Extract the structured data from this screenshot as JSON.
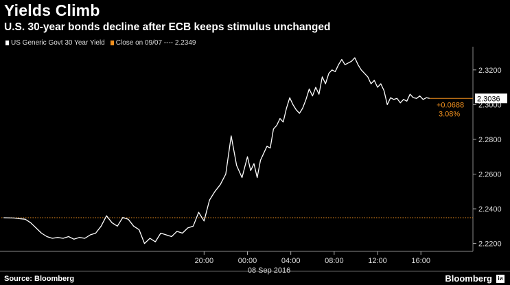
{
  "title": "Yields Climb",
  "subtitle": "U.S. 30-year bonds decline after ECB keeps stimulus unchanged",
  "legend": {
    "series_label": "US Generic Govt 30 Year Yield",
    "close_label": "Close on 09/07 ---- 2.2349"
  },
  "source": "Source: Bloomberg",
  "brand": "Bloomberg",
  "brand_mark": "іи",
  "colors": {
    "background": "#000000",
    "line": "#ffffff",
    "reference": "#f0901e"
  },
  "chart_data": {
    "type": "line",
    "x_ticks": [
      "20:00",
      "00:00",
      "04:00",
      "08:00",
      "12:00",
      "16:00"
    ],
    "x_date_label": "08 Sep 2016",
    "y_ticks": [
      "2.2200",
      "2.2400",
      "2.2600",
      "2.2800",
      "2.3000",
      "2.3200"
    ],
    "ylim": [
      2.2155,
      2.331
    ],
    "reference_value": 2.2349,
    "last_value_label": "2.3036",
    "change_label": "+0.0688",
    "change_pct_label": "3.08%",
    "series": [
      {
        "x": [
          -22.5,
          -21.5,
          -21,
          -20.5,
          -20,
          -19.5,
          -19,
          -18.5,
          -18,
          -17.5,
          -17,
          -16.5,
          -16,
          -15.5,
          -15,
          -14.5,
          -14,
          -13.5,
          -13,
          -12.5,
          -12,
          -11.5,
          -11,
          -10.5,
          -10,
          -9.5,
          -9,
          -8.5,
          -8,
          -7.5,
          -7,
          -6.5,
          -6,
          -5.5,
          -5,
          -4.5,
          -4,
          -3.5,
          -3,
          -2.5,
          -2,
          -1.5,
          -1,
          -0.5,
          0,
          0.3,
          0.6,
          0.9,
          1.2,
          1.5,
          1.8,
          2.1,
          2.4,
          2.7,
          3.0,
          3.3,
          3.6,
          3.9,
          4.2,
          4.5,
          4.8,
          5.1,
          5.4,
          5.7,
          6.0,
          6.3,
          6.6,
          6.9,
          7.2,
          7.5,
          7.8,
          8.1,
          8.4,
          8.7,
          9.0,
          9.3,
          9.6,
          9.9,
          10.2,
          10.5,
          10.8,
          11.1,
          11.4,
          11.7,
          12.0,
          12.3,
          12.6,
          12.9,
          13.2,
          13.5,
          13.8,
          14.1,
          14.4,
          14.7,
          15.0,
          15.3,
          15.6,
          15.9,
          16.2,
          16.5,
          16.8
        ],
        "y": [
          2.2349,
          2.2347,
          2.2343,
          2.234,
          2.232,
          2.229,
          2.226,
          2.224,
          2.223,
          2.2235,
          2.223,
          2.224,
          2.2225,
          2.2235,
          2.223,
          2.225,
          2.226,
          2.23,
          2.236,
          2.232,
          2.23,
          2.235,
          2.234,
          2.23,
          2.228,
          2.22,
          2.223,
          2.221,
          2.226,
          2.225,
          2.224,
          2.227,
          2.226,
          2.229,
          2.23,
          2.238,
          2.233,
          2.245,
          2.25,
          2.254,
          2.26,
          2.282,
          2.265,
          2.258,
          2.27,
          2.262,
          2.266,
          2.258,
          2.268,
          2.272,
          2.276,
          2.275,
          2.286,
          2.288,
          2.292,
          2.29,
          2.298,
          2.304,
          2.3,
          2.297,
          2.295,
          2.298,
          2.303,
          2.309,
          2.305,
          2.31,
          2.306,
          2.316,
          2.312,
          2.318,
          2.32,
          2.319,
          2.323,
          2.326,
          2.323,
          2.324,
          2.325,
          2.327,
          2.323,
          2.32,
          2.318,
          2.316,
          2.312,
          2.314,
          2.31,
          2.312,
          2.308,
          2.3,
          2.304,
          2.303,
          2.3036,
          2.301,
          2.303,
          2.302,
          2.306,
          2.304,
          2.3036,
          2.305,
          2.303,
          2.304,
          2.3036
        ]
      }
    ]
  }
}
